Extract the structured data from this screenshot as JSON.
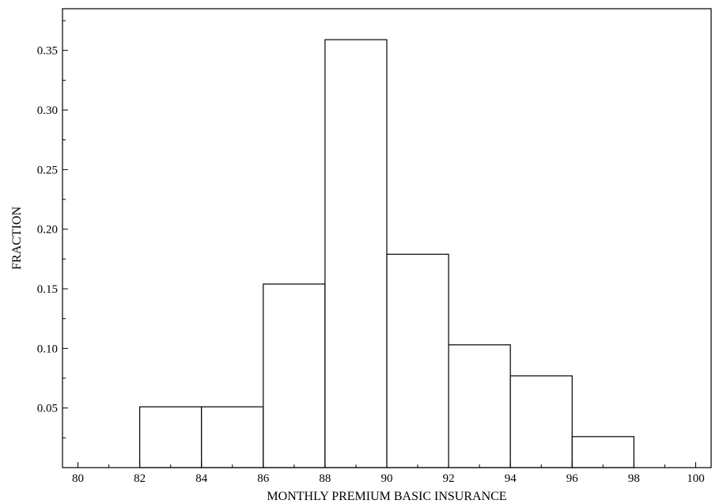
{
  "chart_data": {
    "type": "bar",
    "subtype": "histogram",
    "title": "",
    "xlabel": "MONTHLY PREMIUM BASIC INSURANCE",
    "ylabel": "FRACTION",
    "xlim": [
      79.5,
      100.5
    ],
    "ylim": [
      0,
      0.385
    ],
    "x_ticks": [
      80,
      82,
      84,
      86,
      88,
      90,
      92,
      94,
      96,
      98,
      100
    ],
    "x_tick_labels": [
      "80",
      "82",
      "84",
      "86",
      "88",
      "90",
      "92",
      "94",
      "96",
      "98",
      "100"
    ],
    "y_ticks": [
      0.05,
      0.1,
      0.15,
      0.2,
      0.25,
      0.3,
      0.35
    ],
    "y_tick_labels": [
      "0.05",
      "0.10",
      "0.15",
      "0.20",
      "0.25",
      "0.30",
      "0.35"
    ],
    "bins": [
      {
        "x0": 82,
        "x1": 84,
        "value": 0.051
      },
      {
        "x0": 84,
        "x1": 86,
        "value": 0.051
      },
      {
        "x0": 86,
        "x1": 88,
        "value": 0.154
      },
      {
        "x0": 88,
        "x1": 90,
        "value": 0.359
      },
      {
        "x0": 90,
        "x1": 92,
        "value": 0.179
      },
      {
        "x0": 92,
        "x1": 94,
        "value": 0.103
      },
      {
        "x0": 94,
        "x1": 96,
        "value": 0.077
      },
      {
        "x0": 96,
        "x1": 98,
        "value": 0.026
      }
    ],
    "grid": false,
    "legend": "none"
  }
}
